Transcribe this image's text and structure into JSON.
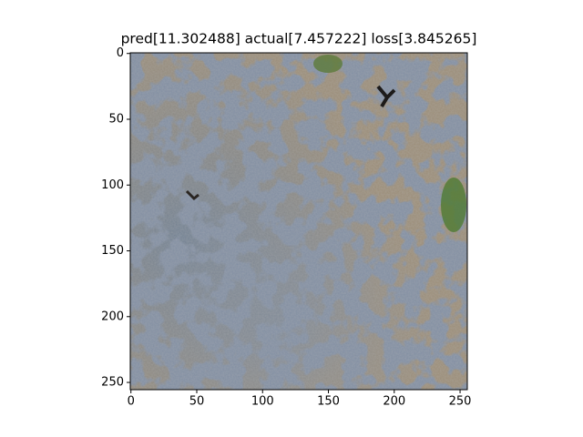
{
  "chart_data": {
    "type": "image",
    "title": "pred[11.302488] actual[7.457222] loss[3.845265]",
    "xlim": [
      -0.5,
      255.5
    ],
    "ylim": [
      255.5,
      -0.5
    ],
    "xticks": [
      0,
      50,
      100,
      150,
      200,
      250
    ],
    "yticks": [
      0,
      50,
      100,
      150,
      200,
      250
    ]
  }
}
